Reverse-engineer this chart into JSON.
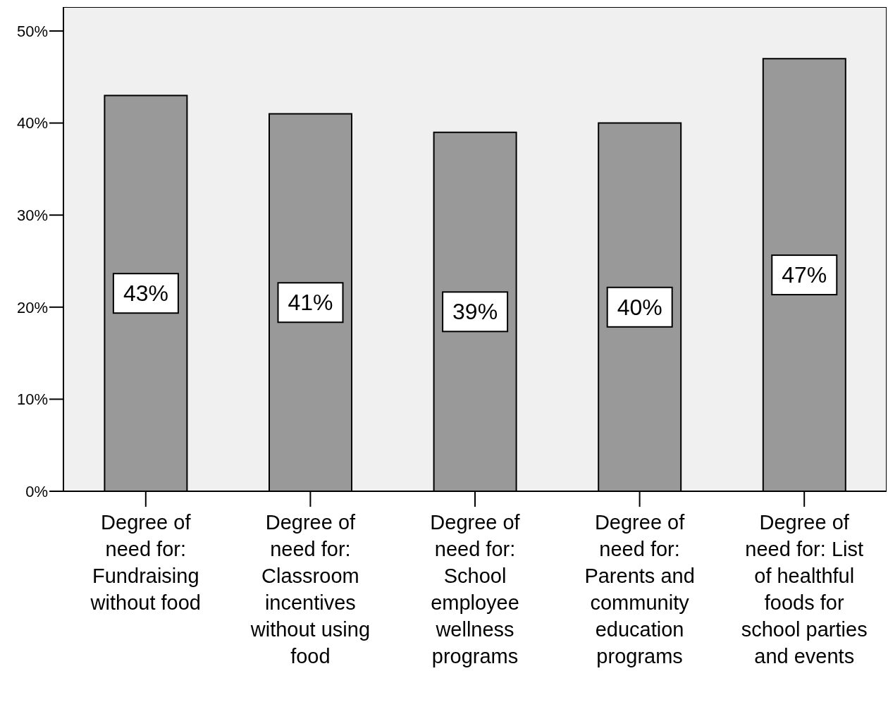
{
  "chart_data": {
    "type": "bar",
    "categories": [
      "Degree of need for: Fundraising without food",
      "Degree of need for: Classroom incentives without using food",
      "Degree of need for: School employee wellness programs",
      "Degree of need for: Parents and community education programs",
      "Degree of need for: List of healthful foods for school parties and events"
    ],
    "values": [
      43,
      41,
      39,
      40,
      47
    ],
    "value_labels": [
      "43%",
      "41%",
      "39%",
      "40%",
      "47%"
    ],
    "color": "#999999",
    "ylim": [
      0,
      52.6
    ],
    "yticks": [
      {
        "value": 0,
        "label": "0%"
      },
      {
        "value": 10,
        "label": "10%"
      },
      {
        "value": 20,
        "label": "20%"
      },
      {
        "value": 30,
        "label": "30%"
      },
      {
        "value": 40,
        "label": "40%"
      },
      {
        "value": 50,
        "label": "50%"
      }
    ],
    "grid": false,
    "legend": false
  }
}
